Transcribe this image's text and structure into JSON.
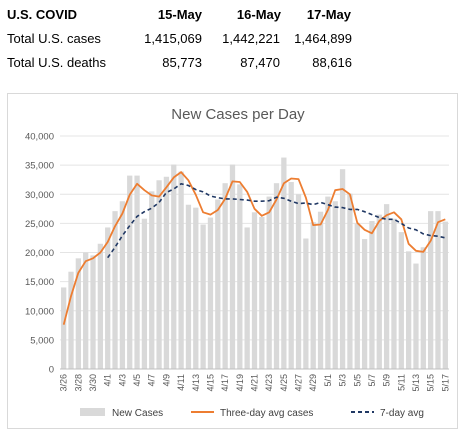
{
  "summary_table": {
    "header_label": "U.S. COVID",
    "dates": [
      "15-May",
      "16-May",
      "17-May"
    ],
    "rows": [
      {
        "label": "Total U.S. cases",
        "values": [
          "1,415,069",
          "1,442,221",
          "1,464,899"
        ]
      },
      {
        "label": "Total U.S. deaths",
        "values": [
          "85,773",
          "87,470",
          "88,616"
        ]
      }
    ]
  },
  "chart_data": {
    "type": "bar",
    "title": "New Cases per Day",
    "xlabel": "",
    "ylabel": "",
    "ylim": [
      0,
      40000
    ],
    "yticks": [
      "0",
      "5,000",
      "10,000",
      "15,000",
      "20,000",
      "25,000",
      "30,000",
      "35,000",
      "40,000"
    ],
    "grid": true,
    "legend_position": "bottom",
    "categories": [
      "3/26",
      "3/27",
      "3/28",
      "3/29",
      "3/30",
      "3/31",
      "4/1",
      "4/2",
      "4/3",
      "4/4",
      "4/5",
      "4/6",
      "4/7",
      "4/8",
      "4/9",
      "4/10",
      "4/11",
      "4/12",
      "4/13",
      "4/14",
      "4/15",
      "4/16",
      "4/17",
      "4/18",
      "4/19",
      "4/20",
      "4/21",
      "4/22",
      "4/23",
      "4/24",
      "4/25",
      "4/26",
      "4/27",
      "4/28",
      "4/29",
      "4/30",
      "5/1",
      "5/2",
      "5/3",
      "5/4",
      "5/5",
      "5/6",
      "5/7",
      "5/8",
      "5/9",
      "5/10",
      "5/11",
      "5/12",
      "5/13",
      "5/14",
      "5/15",
      "5/16",
      "5/17"
    ],
    "xtick_labels": [
      "3/26",
      "3/28",
      "3/30",
      "4/1",
      "4/3",
      "4/5",
      "4/7",
      "4/9",
      "4/11",
      "4/13",
      "4/15",
      "4/17",
      "4/19",
      "4/21",
      "4/23",
      "4/25",
      "4/27",
      "4/29",
      "5/1",
      "5/3",
      "5/5",
      "5/7",
      "5/9",
      "5/11",
      "5/13",
      "5/15",
      "5/17"
    ],
    "series": [
      {
        "name": "New Cases",
        "kind": "bar",
        "color": "#d9d9d9",
        "values": [
          14000,
          16700,
          19000,
          20000,
          19500,
          21500,
          24300,
          27100,
          28800,
          33200,
          33200,
          25800,
          30500,
          32400,
          33000,
          35100,
          33900,
          28200,
          27700,
          24800,
          26000,
          29100,
          31900,
          35100,
          31700,
          24300,
          26900,
          26100,
          29600,
          31900,
          36300,
          32100,
          30000,
          22400,
          25200,
          27000,
          29600,
          28800,
          34300,
          30100,
          25000,
          22300,
          25400,
          26500,
          28300,
          25800,
          23500,
          20200,
          18100,
          20900,
          27100,
          27100,
          25300
        ]
      },
      {
        "name": "Three-day avg cases",
        "kind": "line",
        "color": "#ed7d31",
        "values": [
          7600,
          12500,
          16500,
          18500,
          19000,
          20000,
          21800,
          24500,
          26700,
          29900,
          31800,
          30700,
          29800,
          29600,
          31200,
          32900,
          33800,
          32400,
          29900,
          26900,
          26500,
          27300,
          29200,
          32200,
          32100,
          30400,
          27500,
          26300,
          26900,
          29100,
          31900,
          32700,
          32600,
          29400,
          24700,
          24800,
          27300,
          30700,
          30900,
          30000,
          25100,
          23900,
          23300,
          25400,
          26400,
          26900,
          25700,
          21500,
          20300,
          20100,
          22000,
          25200,
          25700
        ]
      },
      {
        "name": "7-day avg",
        "kind": "line",
        "dashed": true,
        "color": "#203864",
        "values": [
          null,
          null,
          null,
          null,
          null,
          null,
          19100,
          20900,
          22900,
          24600,
          26200,
          27000,
          27600,
          28600,
          30300,
          30900,
          31800,
          31500,
          30800,
          30400,
          29700,
          29400,
          29200,
          29200,
          29100,
          29000,
          28800,
          28800,
          28900,
          29500,
          29300,
          28800,
          28400,
          28500,
          28200,
          28600,
          28200,
          27800,
          27700,
          27400,
          27400,
          27000,
          26500,
          26000,
          25700,
          25700,
          25000,
          24200,
          23900,
          23200,
          22900,
          22800,
          22500
        ]
      }
    ]
  }
}
